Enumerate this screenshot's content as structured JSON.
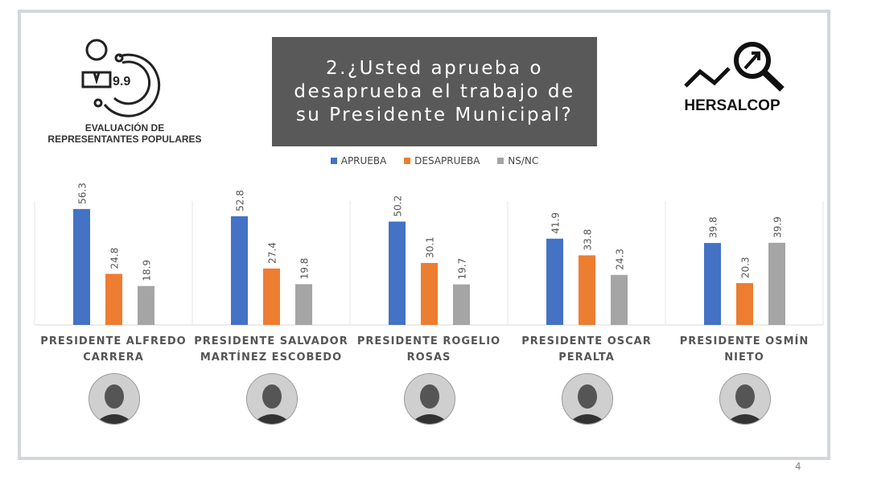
{
  "header": {
    "title": "2.¿Usted aprueba o\ndesaprueba el trabajo de\nsu Presidente Municipal?",
    "left_logo_caption_1": "EVALUACIÓN DE",
    "left_logo_caption_2": "REPRESENTANTES POPULARES",
    "left_logo_score": "9.9",
    "right_logo_brand": "HERSALCOP"
  },
  "page_number": "4",
  "chart_data": {
    "type": "bar",
    "title": "2.¿Usted aprueba o desaprueba el trabajo de su Presidente Municipal?",
    "categories": [
      "PRESIDENTE ALFREDO CARRERA",
      "PRESIDENTE SALVADOR MARTÍNEZ ESCOBEDO",
      "PRESIDENTE ROGELIO ROSAS",
      "PRESIDENTE OSCAR PERALTA",
      "PRESIDENTE OSMÍN NIETO"
    ],
    "series": [
      {
        "name": "APRUEBA",
        "color": "#4472c4",
        "values": [
          56.3,
          52.8,
          50.2,
          41.9,
          39.8
        ]
      },
      {
        "name": "DESAPRUEBA",
        "color": "#ed7d31",
        "values": [
          24.8,
          27.4,
          30.1,
          33.8,
          20.3
        ]
      },
      {
        "name": "NS/NC",
        "color": "#a5a5a5",
        "values": [
          18.9,
          19.8,
          19.7,
          24.3,
          39.9
        ]
      }
    ],
    "ylim": [
      0,
      60
    ],
    "legend": "top-center",
    "grid": false
  }
}
